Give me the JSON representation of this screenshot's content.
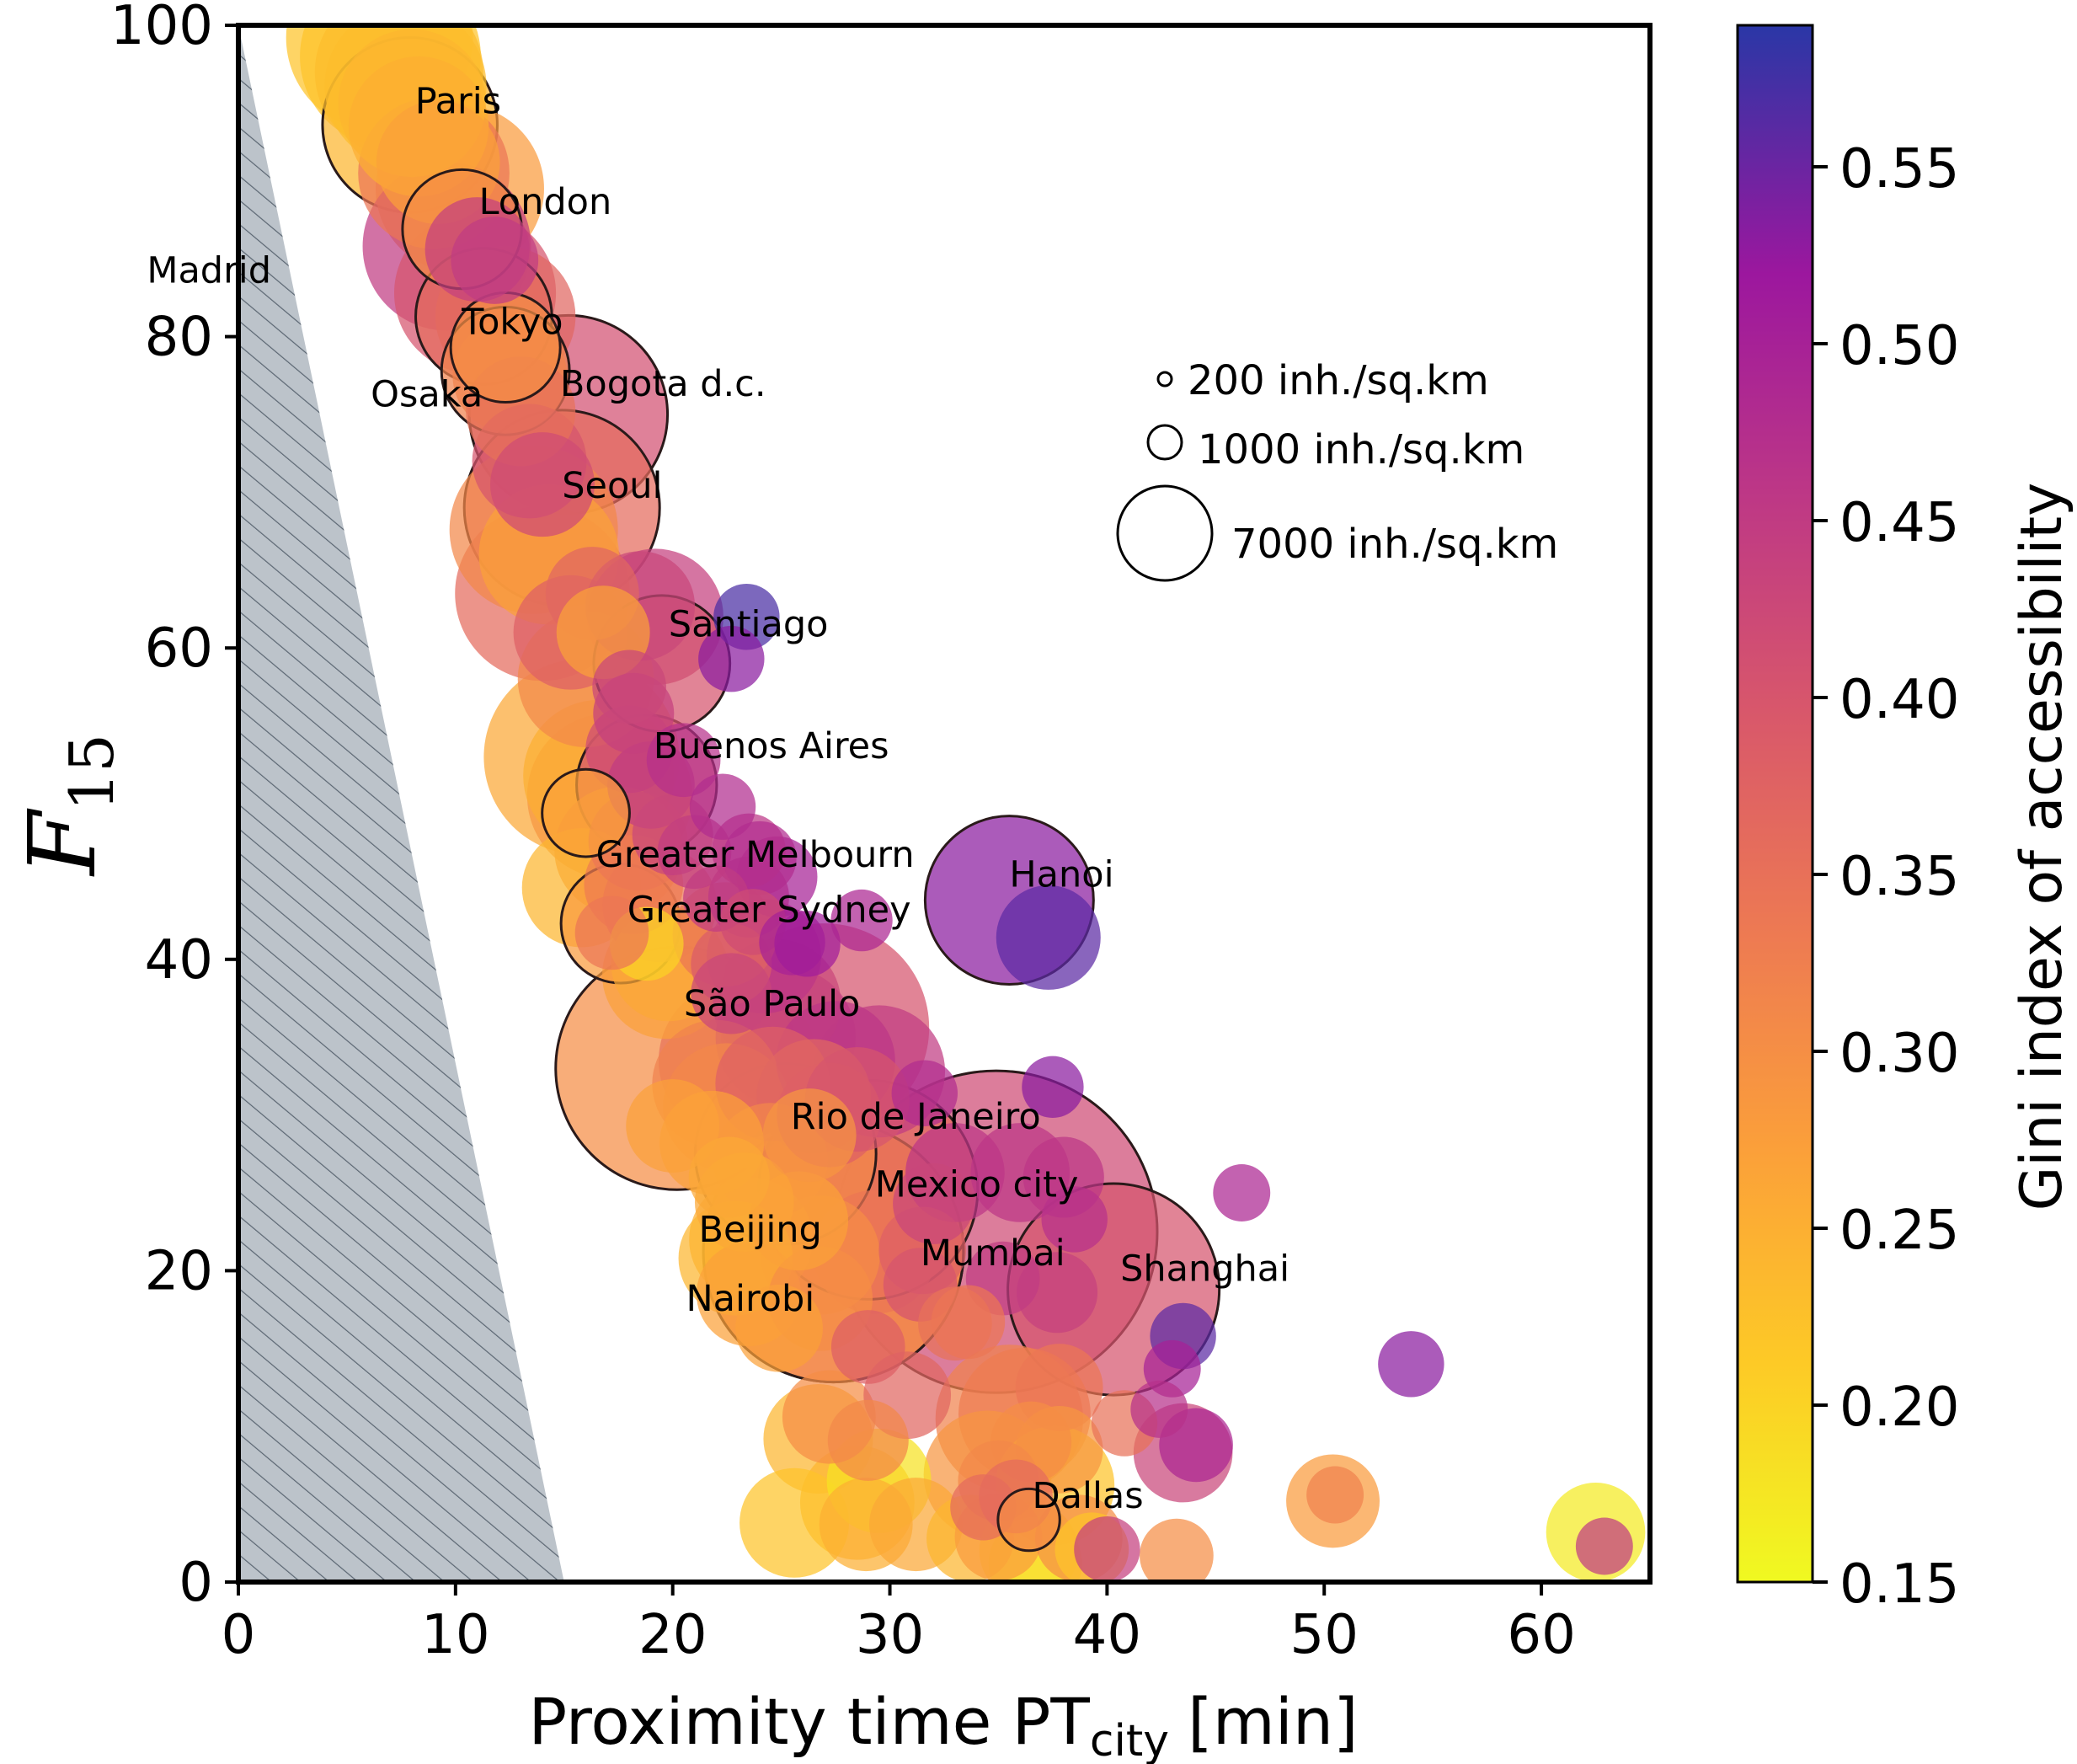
{
  "chart_data": {
    "type": "scatter",
    "xlabel": "Proximity time",
    "xlabel_sub_prefix": "PT",
    "xlabel_sub": "city",
    "xlabel_unit": "[min]",
    "ylabel": "F",
    "ylabel_sub": "15",
    "xlim": [
      0,
      65
    ],
    "ylim": [
      0,
      100
    ],
    "x_ticks": [
      "0",
      "10",
      "20",
      "30",
      "40",
      "50",
      "60"
    ],
    "y_ticks": [
      "0",
      "20",
      "40",
      "60",
      "80",
      "100"
    ],
    "shaded_region": {
      "description_polygon": [
        [
          0,
          0
        ],
        [
          0,
          100
        ],
        [
          15,
          0
        ]
      ],
      "hatch": "diagonal",
      "color": "#b8c0c8"
    },
    "colorbar": {
      "label": "Gini index of accessibility",
      "range": [
        0.15,
        0.59
      ],
      "ticks": [
        "0.15",
        "0.20",
        "0.25",
        "0.30",
        "0.35",
        "0.40",
        "0.45",
        "0.50",
        "0.55"
      ],
      "colormap": "plasma_r"
    },
    "size_legend": [
      {
        "label": "200 inh./sq.km",
        "density": 200
      },
      {
        "label": "1000 inh./sq.km",
        "density": 1000
      },
      {
        "label": "7000 inh./sq.km",
        "density": 7000
      }
    ],
    "labeled_cities": [
      {
        "name": "Paris",
        "x": 7.9,
        "y": 93.6,
        "density": 2800,
        "gini": 0.24
      },
      {
        "name": "London",
        "x": 10.3,
        "y": 86.9,
        "density": 1300,
        "gini": 0.3
      },
      {
        "name": "Madrid",
        "x": 11.3,
        "y": 81.3,
        "density": 1700,
        "gini": 0.36
      },
      {
        "name": "Tokyo",
        "x": 12.3,
        "y": 79.3,
        "density": 1100,
        "gini": 0.3
      },
      {
        "name": "Osaka",
        "x": 12.3,
        "y": 77.8,
        "density": 1500,
        "gini": 0.32
      },
      {
        "name": "Bogota d.c.",
        "x": 15.2,
        "y": 75.0,
        "density": 3600,
        "gini": 0.41
      },
      {
        "name": "Seoul",
        "x": 14.9,
        "y": 69.0,
        "density": 3500,
        "gini": 0.36
      },
      {
        "name": "Santiago",
        "x": 19.5,
        "y": 59.0,
        "density": 1700,
        "gini": 0.4
      },
      {
        "name": "Buenos Aires",
        "x": 18.8,
        "y": 51.2,
        "density": 1800,
        "gini": 0.4
      },
      {
        "name": "Greater Melbourn",
        "x": 16.0,
        "y": 49.4,
        "density": 700,
        "gini": 0.27
      },
      {
        "name": "Hanoi",
        "x": 35.5,
        "y": 43.8,
        "density": 2600,
        "gini": 0.53
      },
      {
        "name": "Greater Sydney",
        "x": 17.6,
        "y": 42.3,
        "density": 1300,
        "gini": 0.28
      },
      {
        "name": "São Paulo",
        "x": 20.2,
        "y": 33.0,
        "density": 5400,
        "gini": 0.3
      },
      {
        "name": "Rio de Janeiro",
        "x": 25.2,
        "y": 27.5,
        "density": 3000,
        "gini": 0.31
      },
      {
        "name": "Mexico city",
        "x": 29.0,
        "y": 25.2,
        "density": 4400,
        "gini": 0.36
      },
      {
        "name": "Beijing",
        "x": 27.4,
        "y": 21.2,
        "density": 6200,
        "gini": 0.31
      },
      {
        "name": "Nairobi",
        "x": 27.4,
        "y": 21.2,
        "density": 6200,
        "gini": 0.31
      },
      {
        "name": "Mumbai",
        "x": 34.9,
        "y": 22.5,
        "density": 9500,
        "gini": 0.42
      },
      {
        "name": "Shanghai",
        "x": 40.3,
        "y": 18.8,
        "density": 4100,
        "gini": 0.4
      },
      {
        "name": "Dallas",
        "x": 36.4,
        "y": 4.0,
        "density": 350,
        "gini": 0.3
      }
    ],
    "other_cities": [
      [
        6.5,
        99.2,
        3200,
        0.22
      ],
      [
        7.0,
        98.0,
        3000,
        0.22
      ],
      [
        7.4,
        97.0,
        2600,
        0.23
      ],
      [
        7.7,
        96.1,
        2400,
        0.23
      ],
      [
        8.0,
        95.0,
        2000,
        0.24
      ],
      [
        8.3,
        93.5,
        1800,
        0.25
      ],
      [
        9.2,
        91.2,
        1400,
        0.27
      ],
      [
        9.0,
        90.5,
        2100,
        0.34
      ],
      [
        10.2,
        89.5,
        2600,
        0.28
      ],
      [
        9.6,
        85.8,
        2600,
        0.45
      ],
      [
        11.0,
        85.6,
        1000,
        0.44
      ],
      [
        11.8,
        84.9,
        700,
        0.45
      ],
      [
        10.9,
        82.8,
        2400,
        0.4
      ],
      [
        12.3,
        81.3,
        1800,
        0.37
      ],
      [
        12.5,
        77.5,
        1200,
        0.32
      ],
      [
        13.0,
        75.2,
        1100,
        0.35
      ],
      [
        13.4,
        72.0,
        1200,
        0.4
      ],
      [
        14.0,
        70.5,
        1000,
        0.42
      ],
      [
        13.6,
        67.6,
        2600,
        0.31
      ],
      [
        14.3,
        66.0,
        1800,
        0.27
      ],
      [
        14.0,
        63.5,
        2800,
        0.36
      ],
      [
        15.3,
        61.0,
        1200,
        0.38
      ],
      [
        16.3,
        63.5,
        800,
        0.37
      ],
      [
        16.8,
        61.0,
        800,
        0.27
      ],
      [
        18.5,
        62.7,
        1100,
        0.43
      ],
      [
        19.2,
        62.0,
        1700,
        0.44
      ],
      [
        16.0,
        58.0,
        1700,
        0.31
      ],
      [
        18.0,
        57.5,
        500,
        0.43
      ],
      [
        18.2,
        55.8,
        600,
        0.44
      ],
      [
        15.8,
        53.0,
        3500,
        0.26
      ],
      [
        16.6,
        51.8,
        2100,
        0.25
      ],
      [
        18.0,
        53.5,
        700,
        0.42
      ],
      [
        20.5,
        52.8,
        500,
        0.47
      ],
      [
        19.0,
        51.2,
        700,
        0.45
      ],
      [
        17.1,
        50.5,
        2500,
        0.29
      ],
      [
        17.5,
        47.0,
        1500,
        0.29
      ],
      [
        18.4,
        47.6,
        900,
        0.36
      ],
      [
        20.0,
        48.0,
        600,
        0.43
      ],
      [
        21.0,
        46.9,
        500,
        0.45
      ],
      [
        22.3,
        49.8,
        400,
        0.48
      ],
      [
        23.5,
        47.0,
        500,
        0.46
      ],
      [
        24.0,
        46.5,
        500,
        0.48
      ],
      [
        24.8,
        45.3,
        600,
        0.5
      ],
      [
        15.8,
        44.6,
        1300,
        0.24
      ],
      [
        18.2,
        44.8,
        900,
        0.33
      ],
      [
        19.4,
        43.5,
        1200,
        0.34
      ],
      [
        22.0,
        43.9,
        400,
        0.45
      ],
      [
        23.5,
        44.0,
        600,
        0.48
      ],
      [
        22.4,
        41.6,
        1000,
        0.34
      ],
      [
        23.7,
        42.4,
        400,
        0.42
      ],
      [
        25.5,
        41.1,
        400,
        0.5
      ],
      [
        26.2,
        41.0,
        400,
        0.51
      ],
      [
        28.7,
        42.5,
        350,
        0.49
      ],
      [
        18.8,
        41.0,
        500,
        0.2
      ],
      [
        19.8,
        39.7,
        1200,
        0.26
      ],
      [
        19.7,
        39.0,
        1500,
        0.27
      ],
      [
        22.7,
        39.7,
        600,
        0.39
      ],
      [
        24.2,
        40.2,
        1200,
        0.46
      ],
      [
        22.7,
        37.8,
        600,
        0.43
      ],
      [
        24.8,
        37.2,
        1500,
        0.43
      ],
      [
        27.0,
        35.6,
        4000,
        0.4
      ],
      [
        25.2,
        35.0,
        1800,
        0.45
      ],
      [
        24.6,
        32.0,
        1200,
        0.38
      ],
      [
        27.5,
        33.5,
        1300,
        0.46
      ],
      [
        29.5,
        32.8,
        1600,
        0.45
      ],
      [
        31.6,
        31.4,
        400,
        0.48
      ],
      [
        23.0,
        33.5,
        2300,
        0.35
      ],
      [
        22.0,
        32.0,
        1500,
        0.32
      ],
      [
        22.5,
        30.5,
        1500,
        0.31
      ],
      [
        27.2,
        30.0,
        1000,
        0.38
      ],
      [
        28.5,
        31.0,
        1000,
        0.4
      ],
      [
        26.5,
        31.2,
        1200,
        0.37
      ],
      [
        37.5,
        31.8,
        350,
        0.53
      ],
      [
        20.0,
        29.3,
        800,
        0.27
      ],
      [
        21.8,
        28.2,
        1000,
        0.27
      ],
      [
        24.5,
        27.1,
        1200,
        0.31
      ],
      [
        26.3,
        28.7,
        800,
        0.29
      ],
      [
        22.6,
        26.0,
        600,
        0.26
      ],
      [
        23.3,
        24.4,
        900,
        0.26
      ],
      [
        23.6,
        22.0,
        1400,
        0.25
      ],
      [
        22.9,
        20.8,
        1200,
        0.24
      ],
      [
        25.8,
        23.2,
        900,
        0.27
      ],
      [
        26.8,
        21.0,
        1300,
        0.3
      ],
      [
        29.3,
        21.2,
        1400,
        0.34
      ],
      [
        32.0,
        24.3,
        600,
        0.43
      ],
      [
        31.5,
        21.3,
        700,
        0.38
      ],
      [
        33.0,
        26.3,
        900,
        0.46
      ],
      [
        36.0,
        26.3,
        900,
        0.46
      ],
      [
        38.0,
        26.0,
        600,
        0.46
      ],
      [
        38.5,
        23.3,
        400,
        0.47
      ],
      [
        35.2,
        19.5,
        500,
        0.45
      ],
      [
        37.7,
        18.6,
        600,
        0.44
      ],
      [
        31.4,
        19.1,
        500,
        0.4
      ],
      [
        23.5,
        18.5,
        1000,
        0.27
      ],
      [
        26.8,
        18.2,
        1000,
        0.3
      ],
      [
        24.9,
        16.3,
        700,
        0.27
      ],
      [
        33.0,
        16.6,
        500,
        0.35
      ],
      [
        33.6,
        16.7,
        500,
        0.34
      ],
      [
        29.0,
        15.1,
        500,
        0.38
      ],
      [
        43.5,
        15.8,
        400,
        0.56
      ],
      [
        43.0,
        13.7,
        300,
        0.5
      ],
      [
        54.0,
        14.0,
        400,
        0.53
      ],
      [
        46.2,
        25.0,
        300,
        0.49
      ],
      [
        27.2,
        10.6,
        800,
        0.3
      ],
      [
        30.8,
        12.0,
        700,
        0.37
      ],
      [
        35.5,
        10.5,
        2000,
        0.32
      ],
      [
        36.2,
        10.8,
        1600,
        0.33
      ],
      [
        37.8,
        12.5,
        700,
        0.34
      ],
      [
        26.7,
        9.2,
        1100,
        0.24
      ],
      [
        29.0,
        9.1,
        600,
        0.31
      ],
      [
        36.5,
        9.0,
        600,
        0.3
      ],
      [
        37.8,
        8.5,
        700,
        0.29
      ],
      [
        42.4,
        11.1,
        300,
        0.47
      ],
      [
        40.8,
        10.2,
        400,
        0.35
      ],
      [
        43.5,
        8.3,
        900,
        0.43
      ],
      [
        44.1,
        8.8,
        500,
        0.49
      ],
      [
        29.5,
        6.5,
        1000,
        0.18
      ],
      [
        34.5,
        6.9,
        1500,
        0.29
      ],
      [
        35.0,
        6.5,
        600,
        0.31
      ],
      [
        37.6,
        6.2,
        1300,
        0.22
      ],
      [
        35.8,
        5.5,
        500,
        0.36
      ],
      [
        28.5,
        5.1,
        1200,
        0.24
      ],
      [
        34.3,
        4.8,
        400,
        0.36
      ],
      [
        25.6,
        3.8,
        1100,
        0.22
      ],
      [
        28.9,
        3.7,
        800,
        0.25
      ],
      [
        31.2,
        3.7,
        800,
        0.26
      ],
      [
        33.7,
        2.8,
        700,
        0.24
      ],
      [
        35.0,
        2.9,
        700,
        0.28
      ],
      [
        36.4,
        2.0,
        900,
        0.21
      ],
      [
        36.7,
        1.2,
        800,
        0.18
      ],
      [
        38.7,
        2.8,
        700,
        0.3
      ],
      [
        39.3,
        2.1,
        500,
        0.22
      ],
      [
        40.0,
        2.1,
        400,
        0.44
      ],
      [
        43.2,
        1.7,
        500,
        0.3
      ],
      [
        50.4,
        5.2,
        800,
        0.28
      ],
      [
        50.5,
        5.6,
        300,
        0.32
      ],
      [
        62.5,
        3.2,
        900,
        0.17
      ],
      [
        62.9,
        2.3,
        300,
        0.45
      ],
      [
        23.4,
        62.0,
        400,
        0.57
      ],
      [
        22.7,
        59.3,
        400,
        0.53
      ],
      [
        37.3,
        41.4,
        1000,
        0.56
      ],
      [
        17.2,
        41.7,
        500,
        0.34
      ]
    ]
  }
}
